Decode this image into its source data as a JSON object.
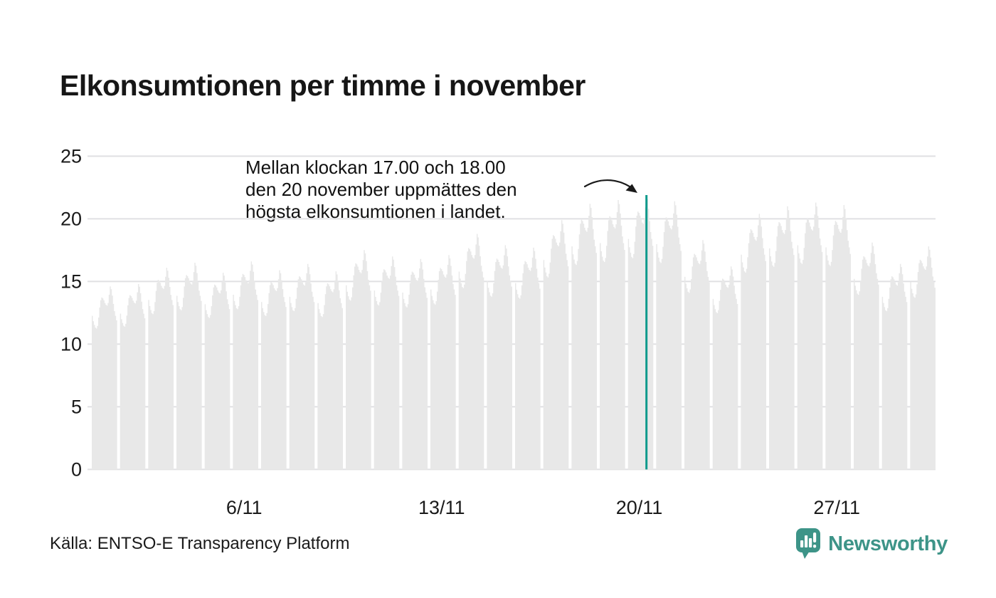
{
  "header": {
    "title": "Elkonsumtionen per timme i november"
  },
  "annotation": {
    "lines": [
      "Mellan klockan 17.00 och 18.00",
      "den 20 november uppmättes den",
      "högsta elkonsumtionen i landet."
    ]
  },
  "footer": {
    "source_label": "Källa: ENTSO-E Transparency Platform",
    "brand_name": "Newsworthy",
    "brand_color": "#3d9488"
  },
  "chart_data": {
    "type": "bar",
    "title": "Elkonsumtionen per timme i november",
    "xlabel": "",
    "ylabel": "",
    "x_unit": "hour of month (30 days × 24 hours)",
    "days_in_month": 30,
    "hours_per_day": 24,
    "ylim": [
      0,
      25
    ],
    "y_ticks": [
      0,
      5,
      10,
      15,
      20,
      25
    ],
    "x_tick_labels": [
      {
        "day": 6,
        "label": "6/11"
      },
      {
        "day": 13,
        "label": "13/11"
      },
      {
        "day": 20,
        "label": "20/11"
      },
      {
        "day": 27,
        "label": "27/11"
      }
    ],
    "grid": true,
    "legend": "none",
    "bar_color": "#e8e8e8",
    "highlight_color": "#0f9a8c",
    "grid_color": "#e0e0e3",
    "daily_peaks": [
      14.6,
      14.8,
      16.1,
      16.5,
      15.7,
      16.6,
      15.9,
      16.4,
      15.8,
      17.5,
      17.0,
      16.8,
      17.1,
      18.8,
      17.9,
      17.7,
      19.9,
      21.2,
      21.5,
      21.9,
      21.4,
      18.3,
      16.2,
      20.4,
      21.0,
      21.3,
      21.1,
      18.1,
      16.4,
      17.8
    ],
    "hour_profile": [
      0.84,
      0.81,
      0.79,
      0.775,
      0.77,
      0.785,
      0.83,
      0.885,
      0.925,
      0.94,
      0.935,
      0.925,
      0.91,
      0.9,
      0.895,
      0.91,
      0.955,
      1.0,
      0.985,
      0.95,
      0.905,
      0.865,
      0.84,
      0.815
    ],
    "highlight": {
      "day": 20,
      "hour_start": 17,
      "hour_end": 18,
      "value": 21.9
    }
  }
}
